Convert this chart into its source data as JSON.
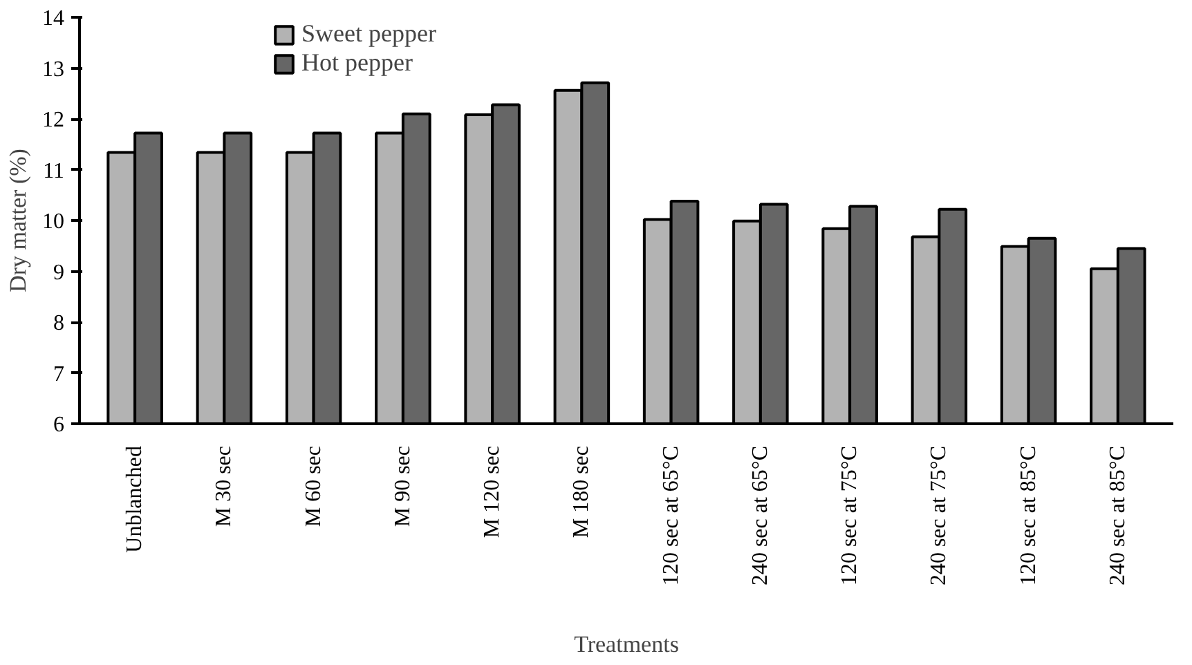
{
  "chart_data": {
    "type": "bar",
    "xlabel": "Treatments",
    "ylabel": "Dry matter (%)",
    "categories": [
      "Unblanched",
      "M 30 sec",
      "M 60 sec",
      "M 90 sec",
      "M 120 sec",
      "M 180 sec",
      "120 sec at 65°C",
      "240 sec at 65°C",
      "120 sec at 75°C",
      "240 sec at 75°C",
      "120 sec at 85°C",
      "240 sec at 85°C"
    ],
    "series": [
      {
        "name": "Sweet pepper",
        "color": "#b3b3b3",
        "values": [
          11.34,
          11.34,
          11.34,
          11.72,
          12.08,
          12.56,
          10.02,
          9.99,
          9.84,
          9.68,
          9.49,
          9.05
        ]
      },
      {
        "name": "Hot pepper",
        "color": "#666666",
        "values": [
          11.72,
          11.72,
          11.72,
          12.1,
          12.28,
          12.71,
          10.38,
          10.32,
          10.28,
          10.22,
          9.65,
          9.45
        ]
      }
    ],
    "ylim": [
      6,
      14
    ],
    "yticks": [
      6,
      7,
      8,
      9,
      10,
      11,
      12,
      13,
      14
    ],
    "grid": false,
    "legend": "top left"
  }
}
